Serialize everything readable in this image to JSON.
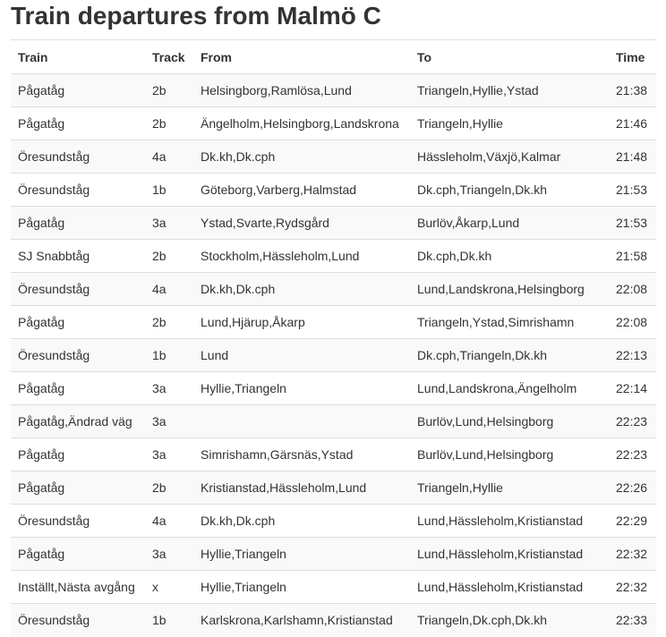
{
  "page": {
    "title": "Train departures from Malmö C"
  },
  "table": {
    "columns": [
      "Train",
      "Track",
      "From",
      "To",
      "Time"
    ],
    "rows": [
      {
        "train": "Pågatåg",
        "track": "2b",
        "from": "Helsingborg,Ramlösa,Lund",
        "to": "Triangeln,Hyllie,Ystad",
        "time": "21:38"
      },
      {
        "train": "Pågatåg",
        "track": "2b",
        "from": "Ängelholm,Helsingborg,Landskrona",
        "to": "Triangeln,Hyllie",
        "time": "21:46"
      },
      {
        "train": "Öresundståg",
        "track": "4a",
        "from": "Dk.kh,Dk.cph",
        "to": "Hässleholm,Växjö,Kalmar",
        "time": "21:48"
      },
      {
        "train": "Öresundståg",
        "track": "1b",
        "from": "Göteborg,Varberg,Halmstad",
        "to": "Dk.cph,Triangeln,Dk.kh",
        "time": "21:53"
      },
      {
        "train": "Pågatåg",
        "track": "3a",
        "from": "Ystad,Svarte,Rydsgård",
        "to": "Burlöv,Åkarp,Lund",
        "time": "21:53"
      },
      {
        "train": "SJ Snabbtåg",
        "track": "2b",
        "from": "Stockholm,Hässleholm,Lund",
        "to": "Dk.cph,Dk.kh",
        "time": "21:58"
      },
      {
        "train": "Öresundståg",
        "track": "4a",
        "from": "Dk.kh,Dk.cph",
        "to": "Lund,Landskrona,Helsingborg",
        "time": "22:08"
      },
      {
        "train": "Pågatåg",
        "track": "2b",
        "from": "Lund,Hjärup,Åkarp",
        "to": "Triangeln,Ystad,Simrishamn",
        "time": "22:08"
      },
      {
        "train": "Öresundståg",
        "track": "1b",
        "from": "Lund",
        "to": "Dk.cph,Triangeln,Dk.kh",
        "time": "22:13"
      },
      {
        "train": "Pågatåg",
        "track": "3a",
        "from": "Hyllie,Triangeln",
        "to": "Lund,Landskrona,Ängelholm",
        "time": "22:14"
      },
      {
        "train": "Pågatåg,Ändrad väg",
        "track": "3a",
        "from": "",
        "to": "Burlöv,Lund,Helsingborg",
        "time": "22:23"
      },
      {
        "train": "Pågatåg",
        "track": "3a",
        "from": "Simrishamn,Gärsnäs,Ystad",
        "to": "Burlöv,Lund,Helsingborg",
        "time": "22:23"
      },
      {
        "train": "Pågatåg",
        "track": "2b",
        "from": "Kristianstad,Hässleholm,Lund",
        "to": "Triangeln,Hyllie",
        "time": "22:26"
      },
      {
        "train": "Öresundståg",
        "track": "4a",
        "from": "Dk.kh,Dk.cph",
        "to": "Lund,Hässleholm,Kristianstad",
        "time": "22:29"
      },
      {
        "train": "Pågatåg",
        "track": "3a",
        "from": "Hyllie,Triangeln",
        "to": "Lund,Hässleholm,Kristianstad",
        "time": "22:32"
      },
      {
        "train": "Inställt,Nästa avgång",
        "track": "x",
        "from": "Hyllie,Triangeln",
        "to": "Lund,Hässleholm,Kristianstad",
        "time": "22:32"
      },
      {
        "train": "Öresundståg",
        "track": "1b",
        "from": "Karlskrona,Karlshamn,Kristianstad",
        "to": "Triangeln,Dk.cph,Dk.kh",
        "time": "22:33"
      }
    ]
  }
}
